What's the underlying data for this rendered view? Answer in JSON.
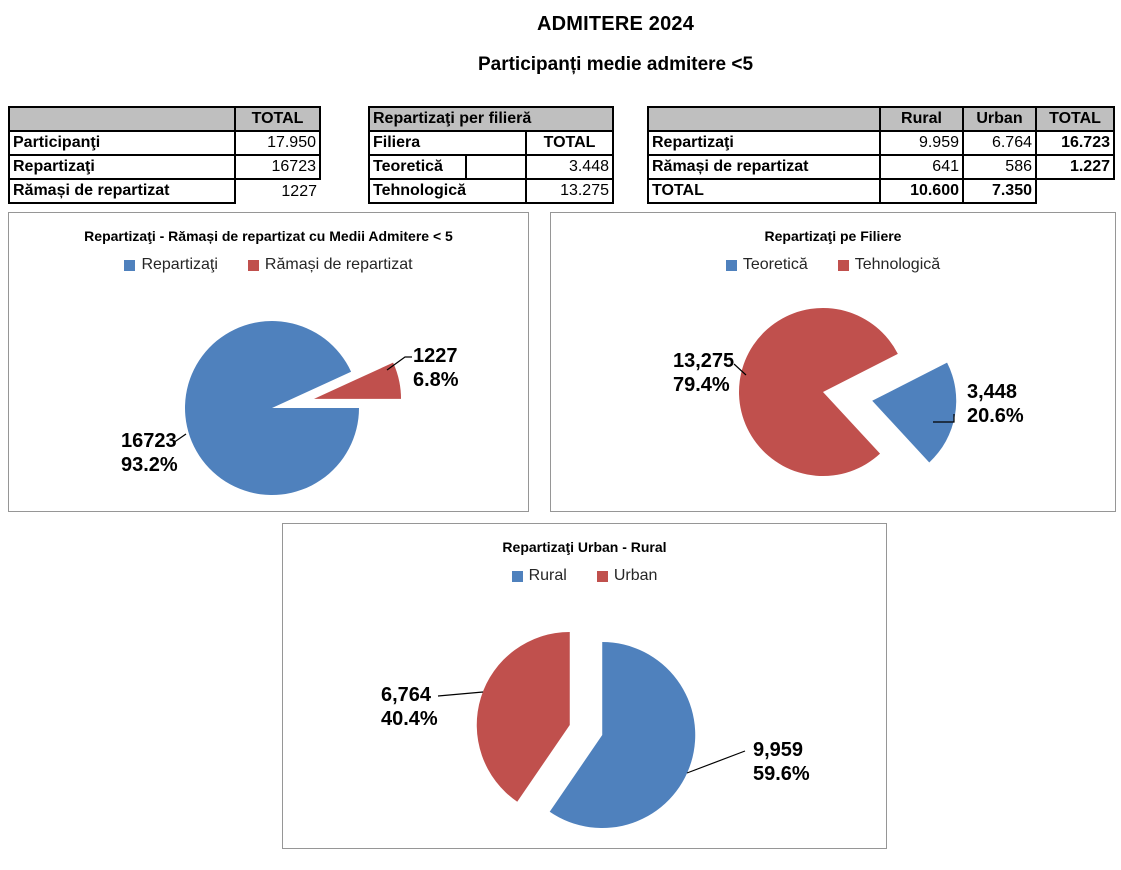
{
  "page": {
    "title": "ADMITERE 2024",
    "subtitle": "Participanți medie admitere <5"
  },
  "colors": {
    "series_blue": "#4F81BD",
    "series_red": "#C0504D",
    "table_header_bg": "#BFBFBF"
  },
  "tables": {
    "totals": {
      "header_total": "TOTAL",
      "rows": [
        [
          "Participanţi",
          "17.950"
        ],
        [
          "Repartizaţi",
          "16723"
        ],
        [
          "Rămași de repartizat",
          "1227"
        ]
      ]
    },
    "filiera": {
      "title": "Repartizaţi per filieră",
      "col_label": "Filiera",
      "col_total": "TOTAL",
      "rows": [
        [
          "Teoretică",
          "3.448"
        ],
        [
          "Tehnologică",
          "13.275"
        ]
      ]
    },
    "rural_urban": {
      "headers": [
        "Rural",
        "Urban",
        "TOTAL"
      ],
      "rows": [
        [
          "Repartizaţi",
          "9.959",
          "6.764",
          "16.723"
        ],
        [
          "Rămași de repartizat",
          "641",
          "586",
          "1.227"
        ],
        [
          "TOTAL",
          "10.600",
          "7.350",
          ""
        ]
      ]
    }
  },
  "chart_data": [
    {
      "type": "pie",
      "title": "Repartizaţi - Rămași de repartizat cu Medii Admitere < 5",
      "legend_position": "top",
      "start_angle": 90,
      "slices": [
        {
          "name": "Repartizaţi",
          "value": 16723,
          "value_label": "16723",
          "pct_label": "93.2%",
          "color": "#4F81BD",
          "explode": 0
        },
        {
          "name": "Rămași de repartizat",
          "value": 1227,
          "value_label": "1227",
          "pct_label": "6.8%",
          "color": "#C0504D",
          "explode": 43
        }
      ]
    },
    {
      "type": "pie",
      "title": "Repartizaţi pe Filiere",
      "legend_position": "top",
      "start_angle": 63,
      "slices": [
        {
          "name": "Teoretică",
          "value": 3448,
          "value_label": "3,448",
          "pct_label": "20.6%",
          "color": "#4F81BD",
          "explode": 50
        },
        {
          "name": "Tehnologică",
          "value": 13275,
          "value_label": "13,275",
          "pct_label": "79.4%",
          "color": "#C0504D",
          "explode": 0
        }
      ]
    },
    {
      "type": "pie",
      "title": "Repartizaţi Urban - Rural",
      "legend_position": "top",
      "start_angle": 0,
      "slices": [
        {
          "name": "Rural",
          "value": 9959,
          "value_label": "9,959",
          "pct_label": "59.6%",
          "color": "#4F81BD",
          "explode": 17
        },
        {
          "name": "Urban",
          "value": 6764,
          "value_label": "6,764",
          "pct_label": "40.4%",
          "color": "#C0504D",
          "explode": 17
        }
      ]
    }
  ]
}
